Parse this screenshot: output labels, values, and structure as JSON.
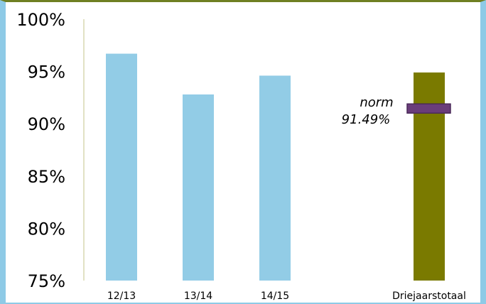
{
  "colors": {
    "frame": "#8ecae6",
    "top_rule": "#6f7f22",
    "bar": "#92cce6",
    "total_bar": "#7a7a00",
    "norm_marker": "#6a3d7a",
    "axis": "#d8d9b0"
  },
  "chart_data": {
    "type": "bar",
    "categories": [
      "12/13",
      "13/14",
      "14/15",
      "Driejaarstotaal"
    ],
    "values": [
      96.7,
      92.8,
      94.6,
      94.9
    ],
    "ylim": [
      75,
      100
    ],
    "yticks": [
      "75%",
      "80%",
      "85%",
      "90%",
      "95%",
      "100%"
    ],
    "norm": {
      "label": "norm",
      "value_label": "91.49%",
      "value": 91.49
    },
    "grid": false,
    "legend": "none"
  }
}
